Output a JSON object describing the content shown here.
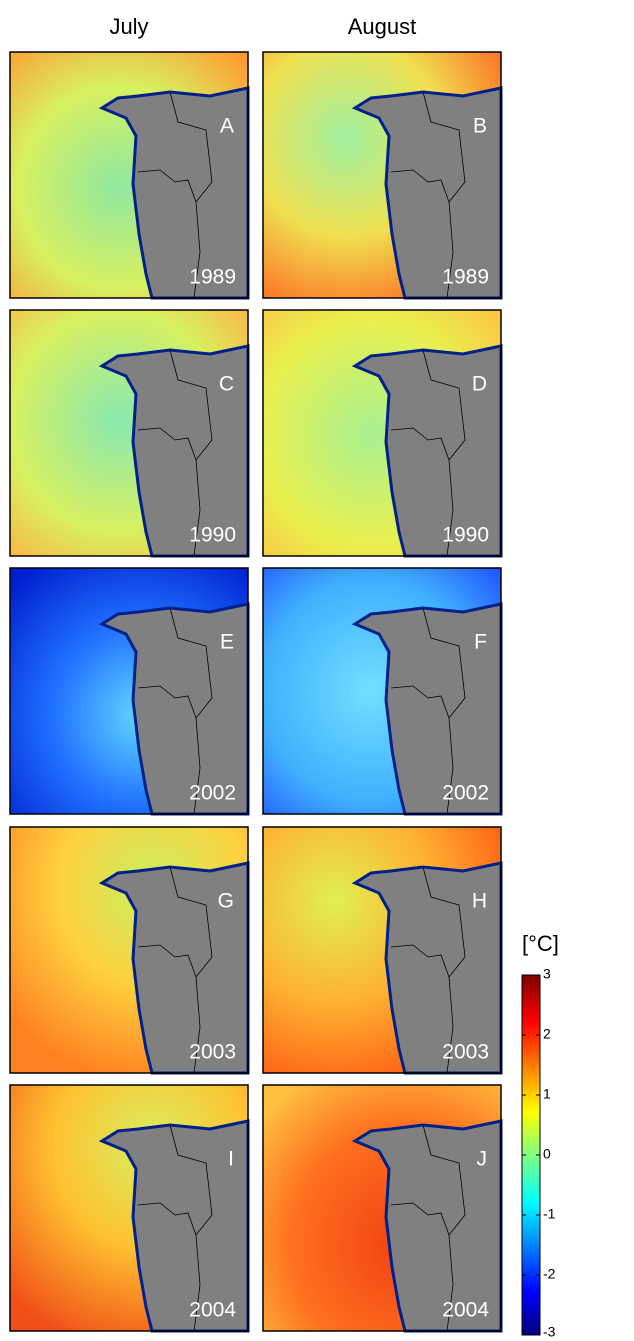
{
  "columns": [
    "July",
    "August"
  ],
  "panels": [
    {
      "letter": "A",
      "year": "1989"
    },
    {
      "letter": "B",
      "year": "1989"
    },
    {
      "letter": "C",
      "year": "1990"
    },
    {
      "letter": "D",
      "year": "1990"
    },
    {
      "letter": "E",
      "year": "2002"
    },
    {
      "letter": "F",
      "year": "2002"
    },
    {
      "letter": "G",
      "year": "2003"
    },
    {
      "letter": "H",
      "year": "2003"
    },
    {
      "letter": "I",
      "year": "2004"
    },
    {
      "letter": "J",
      "year": "2004"
    }
  ],
  "colorbar": {
    "label": "[°C]",
    "lim": [
      -3,
      3
    ],
    "ticks": [
      -3,
      -2,
      -1,
      0,
      1,
      2,
      3
    ]
  }
}
